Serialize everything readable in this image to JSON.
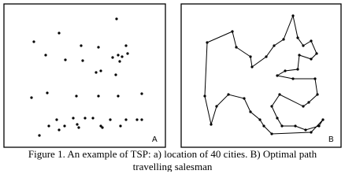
{
  "figure": {
    "panels": [
      {
        "label": "A"
      },
      {
        "label": "B"
      }
    ],
    "caption": [
      "Figure 1. An example of TSP: a) location of 40 cities. B) Optimal path",
      "travelling salesman"
    ]
  }
}
